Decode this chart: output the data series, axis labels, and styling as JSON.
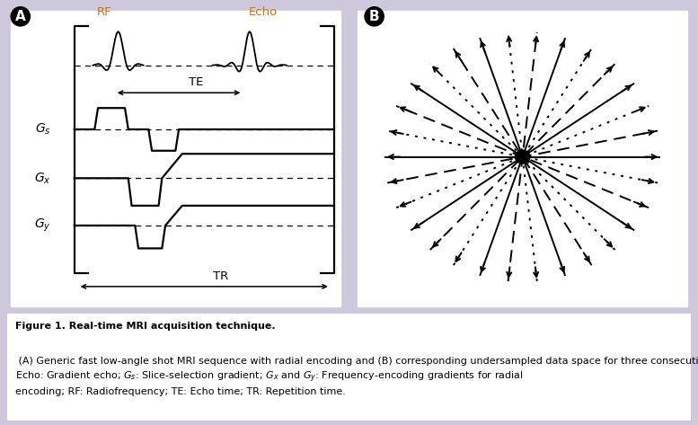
{
  "bg_color": "#cdc8dc",
  "panel_bg": "#ffffff",
  "text_color": "#000000",
  "orange_color": "#d47000",
  "label_A": "A",
  "label_B": "B",
  "rf_label": "RF",
  "echo_label": "Echo",
  "te_label": "TE",
  "tr_label": "TR",
  "solid_angles_deg": [
    0,
    36,
    72,
    108,
    144
  ],
  "dashed_angles_deg": [
    12,
    48,
    84,
    120,
    156
  ],
  "dotted_angles_deg": [
    24,
    60,
    96,
    132,
    168
  ],
  "caption_bold": "Figure 1. Real-time MRI acquisition technique.",
  "caption_normal": " (A) Generic fast low-angle shot MRI sequence with radial encoding and (B) corresponding undersampled data space for three consecutive acquisitions with complementary sets of five spokes each (solid, broken and dotted lines).\nEcho: Gradient echo; G$_s$: Slice-selection gradient; G$_x$ and G$_y$: Frequency-encoding gradients for radial encoding; RF: Radiofrequency; TE: Echo time; TR: Repetition time."
}
